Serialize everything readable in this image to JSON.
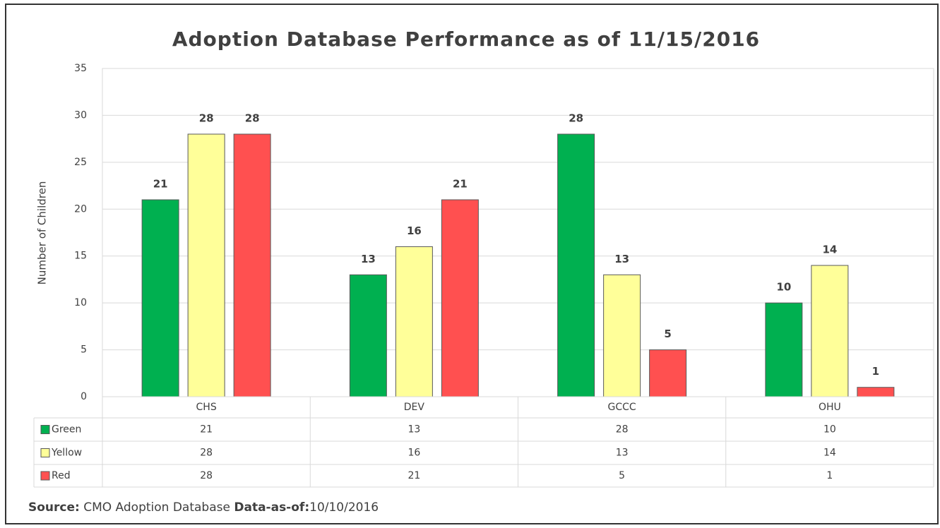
{
  "chart_data": {
    "type": "bar",
    "title": "Adoption Database Performance as of 11/15/2016",
    "y_label": "Number of Children",
    "categories": [
      "CHS",
      "DEV",
      "GCCC",
      "OHU"
    ],
    "series": [
      {
        "name": "Green",
        "color": "#00b050",
        "values": [
          21,
          13,
          28,
          10
        ]
      },
      {
        "name": "Yellow",
        "color": "#ffff99",
        "values": [
          28,
          16,
          13,
          14
        ]
      },
      {
        "name": "Red",
        "color": "#ff5050",
        "values": [
          28,
          21,
          5,
          1
        ]
      }
    ],
    "ylim": [
      0,
      35
    ],
    "yticks": [
      0,
      5,
      10,
      15,
      20,
      25,
      30,
      35
    ],
    "grid": true,
    "data_table": true
  },
  "footer": {
    "source_label": "Source:",
    "source": "CMO Adoption Database",
    "data_as_of_label": "Data-as-of:",
    "data_as_of": "10/10/2016"
  }
}
